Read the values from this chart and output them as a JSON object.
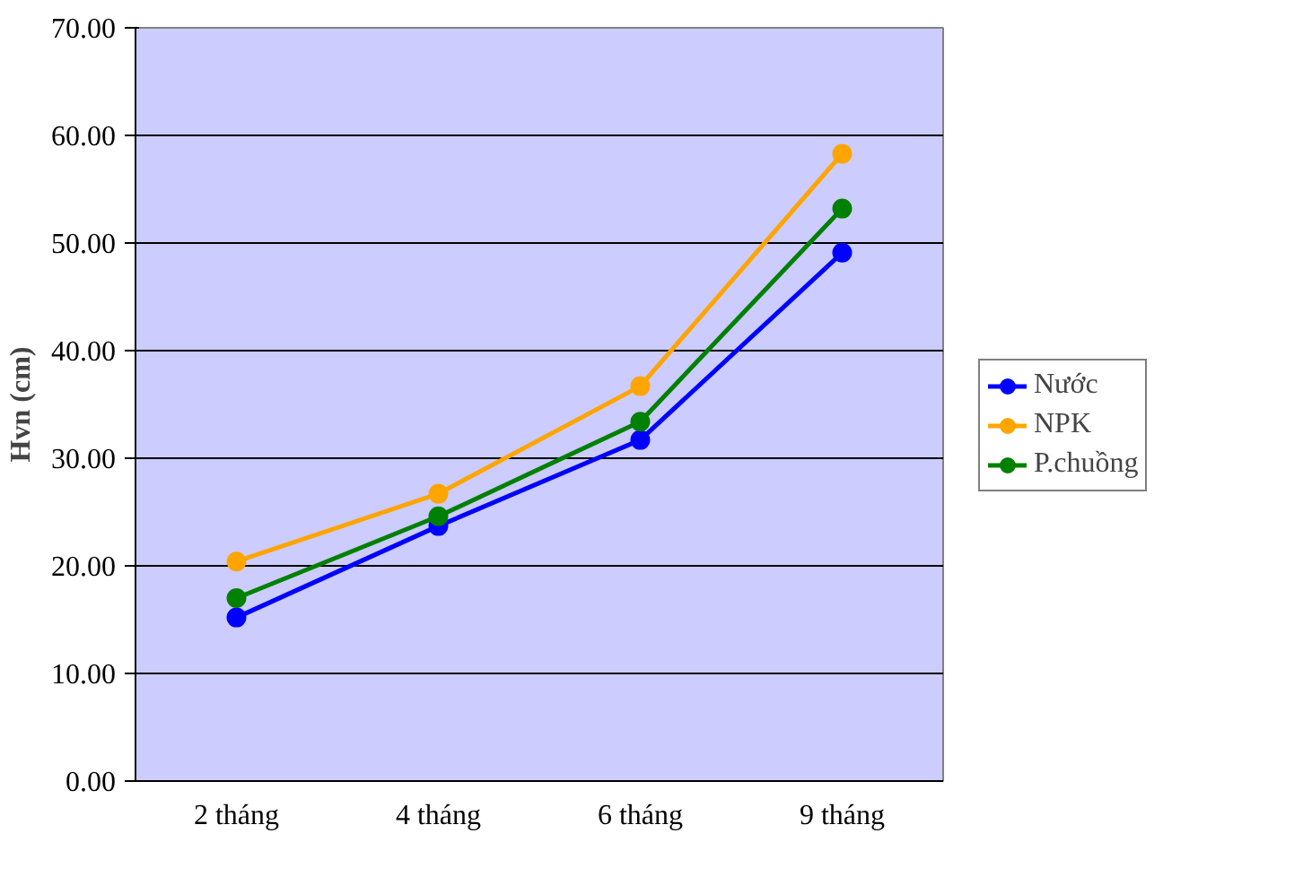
{
  "chart_data": {
    "type": "line",
    "ylabel": "Hvn (cm)",
    "categories": [
      "2 tháng",
      "4 tháng",
      "6 tháng",
      "9 tháng"
    ],
    "series": [
      {
        "name": "Nước",
        "color": "#0000ff",
        "values": [
          15.2,
          23.7,
          31.7,
          49.1
        ]
      },
      {
        "name": "NPK",
        "color": "#ffa500",
        "values": [
          20.4,
          26.7,
          36.7,
          58.3
        ]
      },
      {
        "name": "P.chuồng",
        "color": "#008000",
        "values": [
          17.0,
          24.6,
          33.4,
          53.2
        ]
      }
    ],
    "ylim": [
      0,
      70
    ],
    "yticks": [
      {
        "value": 0,
        "label": "0.00"
      },
      {
        "value": 10,
        "label": "10.00"
      },
      {
        "value": 20,
        "label": "20.00"
      },
      {
        "value": 30,
        "label": "30.00"
      },
      {
        "value": 40,
        "label": "40.00"
      },
      {
        "value": 50,
        "label": "50.00"
      },
      {
        "value": 60,
        "label": "60.00"
      },
      {
        "value": 70,
        "label": "70.00"
      }
    ],
    "grid": "y",
    "legend": "right",
    "marker": "circle",
    "line_style": "solid"
  }
}
